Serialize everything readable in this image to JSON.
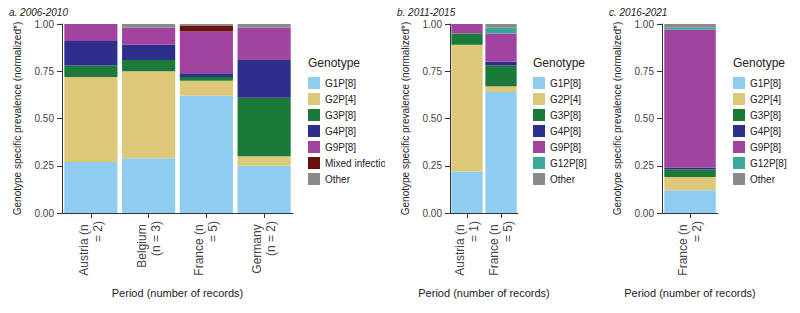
{
  "chart_data": [
    {
      "type": "bar",
      "title": "a. 2006-2010",
      "x_label": "Period (number of records)",
      "y_label": "Genotype specific prevalence (normalized*)",
      "legend_title": "Genotype",
      "categories": [
        "Austria (n = 2)",
        "Belgium (n = 3)",
        "France (n = 5)",
        "Germany (n = 2)"
      ],
      "series": [
        {
          "name": "G1P[8]",
          "color": "#8ecdf0",
          "values": [
            0.27,
            0.29,
            0.62,
            0.25
          ]
        },
        {
          "name": "G2P[4]",
          "color": "#dcc878",
          "values": [
            0.45,
            0.46,
            0.08,
            0.05
          ]
        },
        {
          "name": "G3P[8]",
          "color": "#1b7a3a",
          "values": [
            0.06,
            0.06,
            0.02,
            0.31
          ]
        },
        {
          "name": "G4P[8]",
          "color": "#2e2e8c",
          "values": [
            0.13,
            0.08,
            0.02,
            0.2
          ]
        },
        {
          "name": "G9P[8]",
          "color": "#a0449f",
          "values": [
            0.09,
            0.09,
            0.22,
            0.17
          ]
        },
        {
          "name": "Mixed infections",
          "color": "#6b1010",
          "values": [
            0,
            0,
            0.03,
            0
          ]
        },
        {
          "name": "Other",
          "color": "#8a8a8a",
          "values": [
            0,
            0.02,
            0.01,
            0.02
          ]
        }
      ],
      "ylim": [
        0,
        1
      ],
      "yticks": [
        {
          "value": 0,
          "label": "0.00"
        },
        0.25,
        {
          "value": 0.5,
          "label": "0.50"
        },
        0.75,
        {
          "value": 1,
          "label": "1.00"
        }
      ],
      "stacked": true,
      "grid": false,
      "legend": "right"
    },
    {
      "type": "bar",
      "title": "b. 2011-2015",
      "x_label": "Period (number of records)",
      "y_label": "Genotype specific prevalence (normalized*)",
      "legend_title": "Genotype",
      "categories": [
        "Austria (n = 1)",
        "France (n = 5)"
      ],
      "series": [
        {
          "name": "G1P[8]",
          "color": "#8ecdf0",
          "values": [
            0.22,
            0.64
          ]
        },
        {
          "name": "G2P[4]",
          "color": "#dcc878",
          "values": [
            0.67,
            0.03
          ]
        },
        {
          "name": "G3P[8]",
          "color": "#1b7a3a",
          "values": [
            0.06,
            0.11
          ]
        },
        {
          "name": "G4P[8]",
          "color": "#2e2e8c",
          "values": [
            0,
            0.02
          ]
        },
        {
          "name": "G9P[8]",
          "color": "#a0449f",
          "values": [
            0.05,
            0.15
          ]
        },
        {
          "name": "G12P[8]",
          "color": "#3aa89a",
          "values": [
            0,
            0.03
          ]
        },
        {
          "name": "Other",
          "color": "#8a8a8a",
          "values": [
            0,
            0.02
          ]
        }
      ],
      "ylim": [
        0,
        1
      ],
      "yticks": [
        {
          "value": 0,
          "label": "0.00"
        },
        0.25,
        {
          "value": 0.5,
          "label": "0.50"
        },
        0.75,
        {
          "value": 1,
          "label": "1.00"
        }
      ],
      "stacked": true,
      "grid": false,
      "legend": "right"
    },
    {
      "type": "bar",
      "title": "c. 2016-2021",
      "x_label": "Period (number of records)",
      "y_label": "Genotype specific prevalence (normalized*)",
      "legend_title": "Genotype",
      "categories": [
        "France (n = 2)"
      ],
      "series": [
        {
          "name": "G1P[8]",
          "color": "#8ecdf0",
          "values": [
            0.12
          ]
        },
        {
          "name": "G2P[4]",
          "color": "#dcc878",
          "values": [
            0.07
          ]
        },
        {
          "name": "G3P[8]",
          "color": "#1b7a3a",
          "values": [
            0.04
          ]
        },
        {
          "name": "G4P[8]",
          "color": "#2e2e8c",
          "values": [
            0.01
          ]
        },
        {
          "name": "G9P[8]",
          "color": "#a0449f",
          "values": [
            0.73
          ]
        },
        {
          "name": "G12P[8]",
          "color": "#3aa89a",
          "values": [
            0.01
          ]
        },
        {
          "name": "Other",
          "color": "#8a8a8a",
          "values": [
            0.02
          ]
        }
      ],
      "ylim": [
        0,
        1
      ],
      "yticks": [
        {
          "value": 0,
          "label": "0.00"
        },
        0.25,
        {
          "value": 0.5,
          "label": "0.50"
        },
        0.75,
        {
          "value": 1,
          "label": "1.00"
        }
      ],
      "stacked": true,
      "grid": false,
      "legend": "right"
    }
  ]
}
